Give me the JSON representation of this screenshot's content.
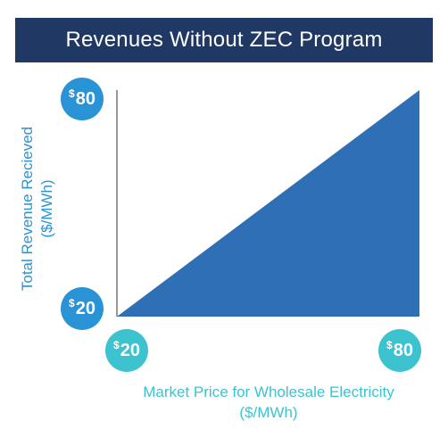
{
  "title": "Revenues Without ZEC Program",
  "colors": {
    "title_bg": "#1f3864",
    "fill": "#2e6fb5",
    "y_badge": "#2a93d5",
    "x_badge": "#3cc3cf",
    "ylabel": "#2a93d5",
    "xlabel": "#3cc3cf",
    "axis": "#333333"
  },
  "chart_data": {
    "type": "area",
    "title": "Revenues Without ZEC Program",
    "xlabel": "Market Price for Wholesale Electricity ($/MWh)",
    "ylabel": "Total Revenue Recieved ($/MWh)",
    "xlabel_lines": [
      "Market Price for Wholesale Electricity",
      "($/MWh)"
    ],
    "ylabel_lines": [
      "Total Revenue Recieved",
      "($/MWh)"
    ],
    "x": [
      20,
      80
    ],
    "series": [
      {
        "values": [
          20,
          80
        ]
      }
    ],
    "xlim": [
      20,
      80
    ],
    "ylim": [
      20,
      80
    ],
    "x_ticks": [
      {
        "currency": "$",
        "number": "20"
      },
      {
        "currency": "$",
        "number": "80"
      }
    ],
    "y_ticks": [
      {
        "currency": "$",
        "number": "80"
      },
      {
        "currency": "$",
        "number": "20"
      }
    ],
    "grid": false,
    "legend": "none"
  }
}
